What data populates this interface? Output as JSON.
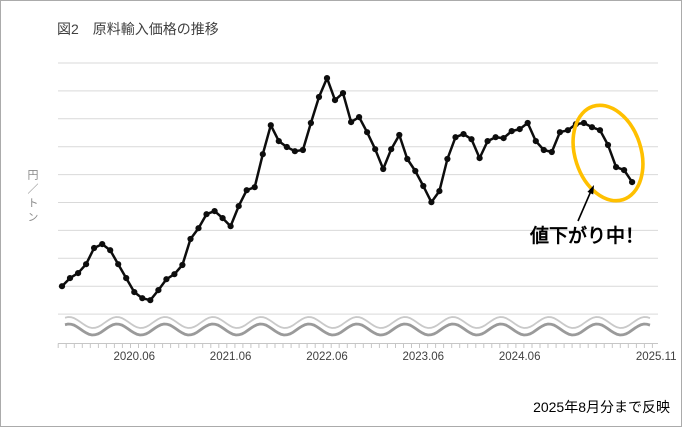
{
  "figure": {
    "title": "図2　原料輸入価格の推移",
    "y_axis_unit": "円／トン",
    "footnote": "2025年8月分まで反映",
    "annotation_label": "値下がり中！"
  },
  "chart_data": {
    "type": "line",
    "title": "原料輸入価格の推移",
    "ylabel": "円／トン",
    "xlabel": "",
    "legend": false,
    "grid": true,
    "axis_numbers_hidden": true,
    "axis_break_wave": true,
    "interval": "monthly",
    "data_start": "2019.09",
    "data_end": "2025.08",
    "x_axis_end_label": "2025.11",
    "x_tick_labels": [
      "2020.06",
      "2021.06",
      "2022.06",
      "2023.06",
      "2024.06",
      "2025.11"
    ],
    "x_tick_month_offsets": [
      9,
      21,
      33,
      45,
      57,
      74
    ],
    "value_scale": "relative price index read from gridlines (10 units per gridline); numeric y labels are not shown in the figure",
    "ylim": [
      0,
      90
    ],
    "values": [
      10.0,
      12.9,
      14.7,
      17.9,
      23.7,
      25.1,
      22.9,
      17.9,
      12.9,
      7.9,
      5.7,
      5.0,
      8.6,
      12.5,
      14.3,
      17.6,
      26.9,
      30.8,
      35.8,
      36.9,
      34.4,
      31.5,
      38.7,
      44.4,
      45.5,
      57.3,
      67.7,
      62.0,
      59.9,
      58.4,
      58.8,
      68.5,
      77.8,
      84.6,
      76.7,
      79.2,
      68.8,
      70.6,
      65.2,
      59.1,
      52.0,
      59.1,
      64.2,
      55.6,
      51.3,
      45.9,
      40.1,
      44.1,
      55.6,
      63.4,
      64.5,
      62.7,
      55.9,
      62.0,
      63.4,
      63.1,
      65.6,
      66.3,
      68.5,
      62.0,
      58.8,
      58.1,
      65.2,
      65.9,
      68.1,
      68.5,
      67.0,
      65.9,
      60.6,
      52.7,
      51.6,
      47.3
    ],
    "annotations": [
      {
        "type": "ellipse",
        "color": "#FFC000",
        "covers": "2025.01–2025.08 decline",
        "label": "値下がり中！",
        "arrow": true
      }
    ]
  },
  "colors": {
    "line": "#0d0d0d",
    "marker": "#0d0d0d",
    "grid": "#d9d9d9",
    "axis": "#c6c6c6",
    "highlight_ellipse": "#FFC000",
    "annotation_text": "#000000",
    "title_text": "#404040",
    "wave_top": "#c9c9c9",
    "wave_bottom": "#9a9a9a"
  }
}
